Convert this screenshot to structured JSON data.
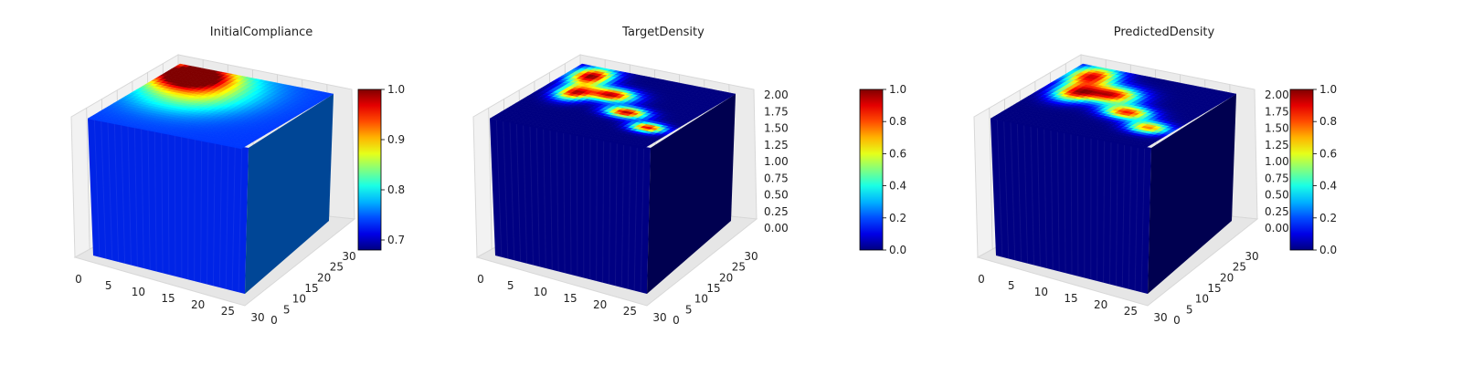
{
  "colormap": "jet",
  "colors": {
    "pane": "#f2f2f2",
    "grid": "#d0d0d0",
    "axis": "#333333"
  },
  "chart_data": [
    {
      "type": "heatmap",
      "subtype": "3d-voxel-cube",
      "title": "InitialCompliance",
      "x_ticks": [
        "0",
        "5",
        "10",
        "15",
        "20",
        "25",
        "30"
      ],
      "y_ticks": [
        "0",
        "5",
        "10",
        "15",
        "20",
        "25",
        "30"
      ],
      "z_ticks": [],
      "colorbar": {
        "range": [
          0.68,
          1.0
        ],
        "ticks": [
          "0.7",
          "0.8",
          "0.9",
          "1.0"
        ]
      },
      "field": "diffuse hot spot at the far-left top corner",
      "hotspots": [
        {
          "u": 0.14,
          "v": 0.12,
          "su": 0.22,
          "sv": 0.2,
          "w": 0.95
        },
        {
          "u": 0.3,
          "v": 0.3,
          "su": 0.35,
          "sv": 0.35,
          "w": 0.45
        }
      ],
      "base_level": 0.06
    },
    {
      "type": "heatmap",
      "subtype": "3d-voxel-cube",
      "title": "TargetDensity",
      "x_ticks": [
        "0",
        "5",
        "10",
        "15",
        "20",
        "25",
        "30"
      ],
      "y_ticks": [
        "0",
        "5",
        "10",
        "15",
        "20",
        "25",
        "30"
      ],
      "z_ticks": [
        "0.00",
        "0.25",
        "0.50",
        "0.75",
        "1.00",
        "1.25",
        "1.50",
        "1.75",
        "2.00"
      ],
      "colorbar": {
        "range": [
          0.0,
          1.0
        ],
        "ticks": [
          "0.0",
          "0.2",
          "0.4",
          "0.6",
          "0.8",
          "1.0"
        ]
      },
      "field": "Y-shaped high-density band on the top face",
      "hotspots": [
        {
          "u": 0.15,
          "v": 0.15,
          "su": 0.12,
          "sv": 0.14,
          "w": 1.0
        },
        {
          "u": 0.4,
          "v": 0.35,
          "su": 0.14,
          "sv": 0.1,
          "w": 0.95
        },
        {
          "u": 0.62,
          "v": 0.55,
          "su": 0.12,
          "sv": 0.08,
          "w": 0.95
        },
        {
          "u": 0.85,
          "v": 0.7,
          "su": 0.1,
          "sv": 0.07,
          "w": 0.9
        },
        {
          "u": 0.2,
          "v": 0.42,
          "su": 0.1,
          "sv": 0.12,
          "w": 0.85
        }
      ],
      "base_level": 0.0
    },
    {
      "type": "heatmap",
      "subtype": "3d-voxel-cube",
      "title": "PredictedDensity",
      "x_ticks": [
        "0",
        "5",
        "10",
        "15",
        "20",
        "25",
        "30"
      ],
      "y_ticks": [
        "0",
        "5",
        "10",
        "15",
        "20",
        "25",
        "30"
      ],
      "z_ticks": [
        "0.00",
        "0.25",
        "0.50",
        "0.75",
        "1.00",
        "1.25",
        "1.50",
        "1.75",
        "2.00"
      ],
      "colorbar": {
        "range": [
          0.0,
          1.0
        ],
        "ticks": [
          "0.0",
          "0.2",
          "0.4",
          "0.6",
          "0.8",
          "1.0"
        ]
      },
      "field": "blurred Y-shaped high-density band on the top face",
      "hotspots": [
        {
          "u": 0.15,
          "v": 0.15,
          "su": 0.14,
          "sv": 0.16,
          "w": 0.9
        },
        {
          "u": 0.4,
          "v": 0.35,
          "su": 0.16,
          "sv": 0.13,
          "w": 0.9
        },
        {
          "u": 0.62,
          "v": 0.55,
          "su": 0.14,
          "sv": 0.1,
          "w": 0.85
        },
        {
          "u": 0.85,
          "v": 0.7,
          "su": 0.12,
          "sv": 0.09,
          "w": 0.75
        },
        {
          "u": 0.2,
          "v": 0.42,
          "su": 0.12,
          "sv": 0.14,
          "w": 0.75
        }
      ],
      "base_level": 0.0
    }
  ]
}
